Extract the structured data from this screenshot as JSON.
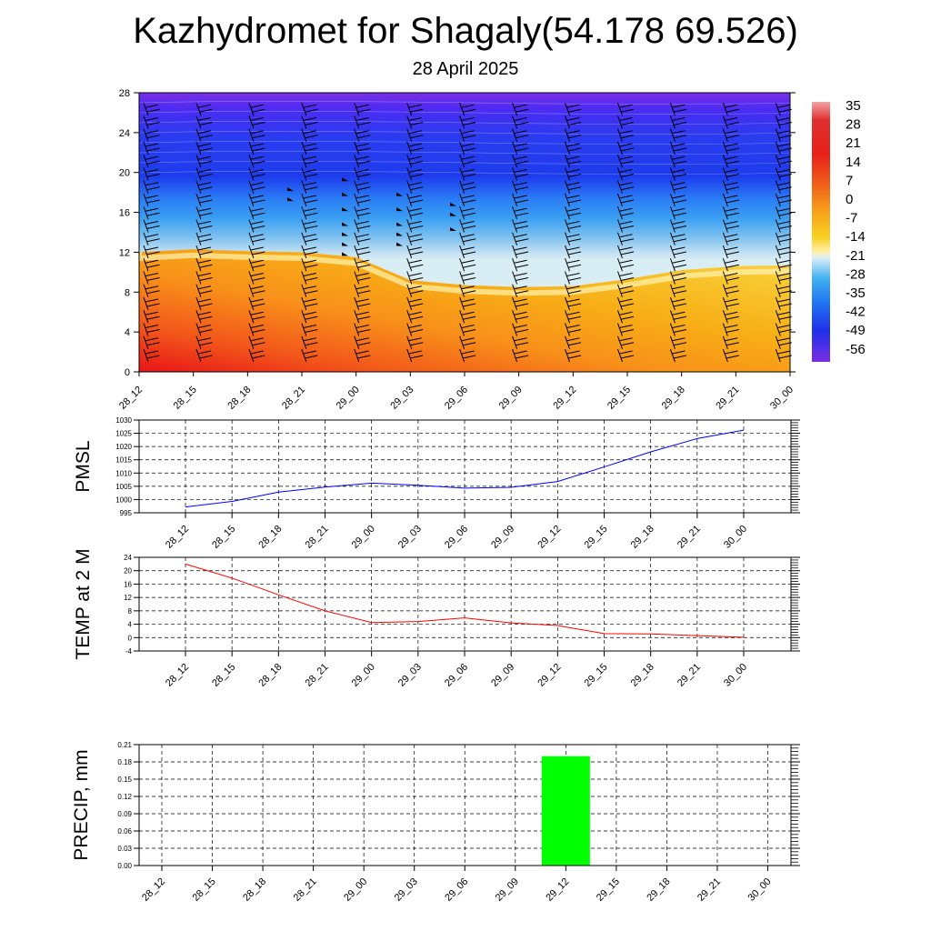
{
  "title": "Kazhydromet for Shagaly(54.178 69.526)",
  "subtitle": "28 April 2025",
  "chart_data": [
    {
      "type": "heatmap",
      "x_labels": [
        "28_12",
        "28_15",
        "28_18",
        "28_21",
        "29_00",
        "29_03",
        "29_06",
        "29_09",
        "29_12",
        "29_15",
        "29_18",
        "29_21",
        "30_00"
      ],
      "y_ticks": [
        "0",
        "4",
        "8",
        "12",
        "16",
        "20",
        "24",
        "28"
      ],
      "ylim": [
        0,
        28
      ],
      "colorbar_labels": [
        "35",
        "28",
        "21",
        "14",
        "7",
        "0",
        "-7",
        "-14",
        "-21",
        "-28",
        "-35",
        "-42",
        "-49",
        "-56"
      ],
      "freezing_level": [
        12.0,
        12.3,
        12.1,
        12.0,
        11.5,
        9.2,
        8.7,
        8.5,
        8.6,
        9.3,
        10.2,
        10.6,
        10.7
      ],
      "colors": {
        "warm": "#e8101a",
        "mid": "#f6a800",
        "cold": "#2050f0",
        "coldest": "#7a1ae8"
      }
    },
    {
      "type": "line",
      "ylabel": "PMSL",
      "x": [
        "28_12",
        "28_15",
        "28_18",
        "28_21",
        "29_00",
        "29_03",
        "29_06",
        "29_09",
        "29_12",
        "29_15",
        "29_18",
        "29_21",
        "30_00"
      ],
      "values": [
        997.2,
        999.3,
        1002.8,
        1004.7,
        1006.2,
        1005.4,
        1004.3,
        1004.6,
        1006.8,
        1012.3,
        1018.0,
        1023.0,
        1026.2
      ],
      "ylim": [
        995,
        1030
      ],
      "y_ticks": [
        "995",
        "1000",
        "1005",
        "1010",
        "1015",
        "1020",
        "1025",
        "1030"
      ],
      "color": "#0000ff"
    },
    {
      "type": "line",
      "ylabel": "TEMP at 2 M",
      "x": [
        "28_12",
        "28_15",
        "28_18",
        "28_21",
        "29_00",
        "29_03",
        "29_06",
        "29_09",
        "29_12",
        "29_15",
        "29_18",
        "29_21",
        "30_00"
      ],
      "values": [
        22.0,
        17.8,
        12.8,
        8.0,
        4.5,
        4.8,
        5.9,
        4.4,
        3.6,
        1.2,
        1.1,
        0.6,
        0.1
      ],
      "ylim": [
        -4,
        24
      ],
      "y_ticks": [
        "-4",
        "0",
        "4",
        "8",
        "12",
        "16",
        "20",
        "24"
      ],
      "color": "#ff0000"
    },
    {
      "type": "bar",
      "ylabel": "PRECIP, mm",
      "x": [
        "28_12",
        "28_15",
        "28_18",
        "28_21",
        "29_00",
        "29_03",
        "29_06",
        "29_09",
        "29_12",
        "29_15",
        "29_18",
        "29_21",
        "30_00"
      ],
      "values": [
        0,
        0,
        0,
        0,
        0,
        0,
        0,
        0,
        0.19,
        0,
        0,
        0,
        0
      ],
      "ylim": [
        0,
        0.21
      ],
      "y_ticks": [
        "0.00",
        "0.03",
        "0.06",
        "0.09",
        "0.12",
        "0.15",
        "0.18",
        "0.21"
      ],
      "color": "#00ff00"
    }
  ]
}
